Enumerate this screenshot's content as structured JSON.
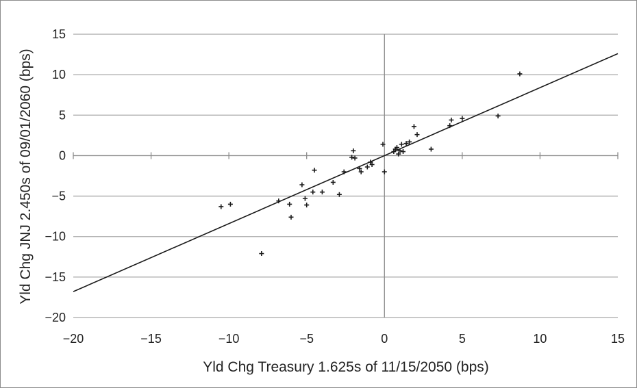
{
  "chart_data": {
    "type": "scatter",
    "xlabel": "Yld Chg Treasury 1.625s of 11/15/2050 (bps)",
    "ylabel": "Yld Chg JNJ 2.450s of 09/01/2060 (bps)",
    "xlim": [
      -20,
      15
    ],
    "ylim": [
      -20,
      15
    ],
    "x_ticks": [
      "−20",
      "−15",
      "−10",
      "−5",
      "0",
      "5",
      "10",
      "15"
    ],
    "y_ticks": [
      "15",
      "10",
      "5",
      "0",
      "−5",
      "−10",
      "−15",
      "−20"
    ],
    "grid": "horizontal",
    "marker": "+",
    "points": [
      {
        "x": -10.5,
        "y": -6.3
      },
      {
        "x": -9.9,
        "y": -6.0
      },
      {
        "x": -7.9,
        "y": -12.1
      },
      {
        "x": -6.8,
        "y": -5.6
      },
      {
        "x": -6.1,
        "y": -6.0
      },
      {
        "x": -6.0,
        "y": -7.6
      },
      {
        "x": -5.3,
        "y": -3.6
      },
      {
        "x": -5.1,
        "y": -5.3
      },
      {
        "x": -5.0,
        "y": -6.1
      },
      {
        "x": -4.6,
        "y": -4.5
      },
      {
        "x": -4.5,
        "y": -1.8
      },
      {
        "x": -4.0,
        "y": -4.5
      },
      {
        "x": -3.3,
        "y": -3.3
      },
      {
        "x": -2.9,
        "y": -4.8
      },
      {
        "x": -2.6,
        "y": -2.0
      },
      {
        "x": -2.1,
        "y": -0.2
      },
      {
        "x": -2.0,
        "y": 0.6
      },
      {
        "x": -1.9,
        "y": -0.3
      },
      {
        "x": -1.6,
        "y": -1.6
      },
      {
        "x": -1.5,
        "y": -2.0
      },
      {
        "x": -1.1,
        "y": -1.4
      },
      {
        "x": -0.9,
        "y": -0.8
      },
      {
        "x": -0.8,
        "y": -1.1
      },
      {
        "x": -0.1,
        "y": 1.4
      },
      {
        "x": 0.0,
        "y": -2.0
      },
      {
        "x": 0.6,
        "y": 0.5
      },
      {
        "x": 0.7,
        "y": 0.8
      },
      {
        "x": 0.8,
        "y": 1.0
      },
      {
        "x": 0.9,
        "y": 0.2
      },
      {
        "x": 1.0,
        "y": 0.6
      },
      {
        "x": 1.1,
        "y": 1.4
      },
      {
        "x": 1.2,
        "y": 0.5
      },
      {
        "x": 1.4,
        "y": 1.5
      },
      {
        "x": 1.6,
        "y": 1.7
      },
      {
        "x": 1.9,
        "y": 3.6
      },
      {
        "x": 2.1,
        "y": 2.6
      },
      {
        "x": 3.0,
        "y": 0.8
      },
      {
        "x": 4.2,
        "y": 3.7
      },
      {
        "x": 4.3,
        "y": 4.4
      },
      {
        "x": 5.0,
        "y": 4.6
      },
      {
        "x": 7.3,
        "y": 4.9
      },
      {
        "x": 8.7,
        "y": 10.1
      }
    ],
    "regression_line": {
      "x": [
        -20,
        15
      ],
      "y": [
        -16.8,
        12.6
      ]
    },
    "colors": {
      "gridline": "#a8a8a8",
      "axis": "#8c8c8c",
      "marks": "#1a1a1a",
      "frame": "#8c8c8c"
    }
  }
}
